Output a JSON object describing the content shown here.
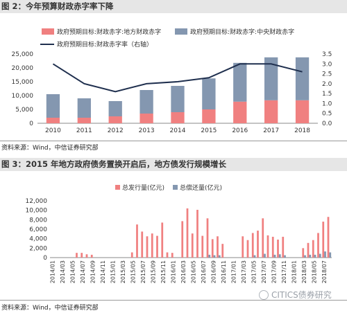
{
  "fig1": {
    "title": "图 2：今年预算财政赤字率下降",
    "source": "资料来源：Wind，中信证券研究部"
  },
  "fig2": {
    "title": "图 3：2015 年地方政府债务置换开启后，地方债发行规模增长",
    "source": "资料来源：Wind，中信证券研究部"
  },
  "watermark": "CITICS债券研究",
  "colors": {
    "local": "#f08080",
    "central": "#8497b0",
    "rate": "#1f2f4e",
    "issue": "#f08080",
    "repay": "#8497b0"
  },
  "chart_data": [
    {
      "type": "bar",
      "stacked": true,
      "categories": [
        "2010",
        "2011",
        "2012",
        "2013",
        "2014",
        "2015",
        "2016",
        "2017",
        "2018"
      ],
      "series": [
        {
          "name": "政府预期目标:财政赤字:地方财政赤字",
          "kind": "bar",
          "axis": "left",
          "values": [
            2000,
            2000,
            2500,
            3500,
            4000,
            5000,
            7800,
            8300,
            8300
          ]
        },
        {
          "name": "政府预期目标:财政赤字:中央财政赤字",
          "kind": "bar",
          "axis": "left",
          "values": [
            8500,
            7000,
            5500,
            8500,
            9500,
            11200,
            14000,
            15500,
            15500
          ]
        },
        {
          "name": "政府预期目标:财政赤字率（右轴）",
          "kind": "line",
          "axis": "right",
          "values": [
            3.0,
            2.0,
            1.6,
            2.0,
            2.1,
            2.3,
            3.0,
            3.0,
            2.6
          ]
        }
      ],
      "yticks_left": [
        "0",
        "5,000",
        "10,000",
        "15,000",
        "20,000",
        "25,000"
      ],
      "yticks_right": [
        "0.0",
        "0.5",
        "1.0",
        "1.5",
        "2.0",
        "2.5",
        "3.0",
        "3.5"
      ],
      "ylim_left": [
        0,
        25000
      ],
      "ylim_right": [
        0,
        3.5
      ],
      "legend_position": "top"
    },
    {
      "type": "bar",
      "categories": [
        "2014/01",
        "2014/02",
        "2014/03",
        "2014/04",
        "2014/05",
        "2014/06",
        "2014/07",
        "2014/08",
        "2014/09",
        "2014/10",
        "2014/11",
        "2014/12",
        "2015/01",
        "2015/02",
        "2015/03",
        "2015/04",
        "2015/05",
        "2015/06",
        "2015/07",
        "2015/08",
        "2015/09",
        "2015/10",
        "2015/11",
        "2015/12",
        "2016/01",
        "2016/02",
        "2016/03",
        "2016/04",
        "2016/05",
        "2016/06",
        "2016/07",
        "2016/08",
        "2016/09",
        "2016/10",
        "2016/11",
        "2016/12",
        "2017/01",
        "2017/02",
        "2017/03",
        "2017/04",
        "2017/05",
        "2017/06",
        "2017/07",
        "2017/08",
        "2017/09",
        "2017/10",
        "2017/11",
        "2017/12",
        "2018/01",
        "2018/02",
        "2018/03",
        "2018/04",
        "2018/05",
        "2018/06",
        "2018/07",
        "2018/08"
      ],
      "tick_labels": [
        "2014/01",
        "2014/03",
        "2014/05",
        "2014/07",
        "2014/09",
        "2014/11",
        "2015/01",
        "2015/03",
        "2015/05",
        "2015/07",
        "2015/09",
        "2015/11",
        "2016/01",
        "2016/03",
        "2016/05",
        "2016/07",
        "2016/09",
        "2016/11",
        "2017/01",
        "2017/03",
        "2017/05",
        "2017/07",
        "2017/09",
        "2017/11",
        "2018/01",
        "2018/03",
        "2018/05",
        "2018/07"
      ],
      "series": [
        {
          "name": "总发行量(亿元)",
          "values": [
            0,
            0,
            0,
            0,
            0,
            1000,
            1000,
            700,
            600,
            0,
            0,
            0,
            0,
            0,
            0,
            0,
            1100,
            7000,
            5500,
            4500,
            5100,
            4600,
            7400,
            1100,
            1000,
            0,
            7700,
            10400,
            5100,
            10100,
            4600,
            8300,
            3900,
            4500,
            2900,
            0,
            0,
            0,
            4500,
            3700,
            5200,
            5700,
            8300,
            4700,
            4400,
            3800,
            4400,
            0,
            0,
            0,
            2000,
            3100,
            3700,
            5200,
            7600,
            8600
          ]
        },
        {
          "name": "总偿还量(亿元)",
          "values": [
            0,
            0,
            0,
            0,
            0,
            0,
            0,
            0,
            0,
            0,
            0,
            0,
            0,
            0,
            0,
            0,
            0,
            0,
            0,
            0,
            0,
            0,
            0,
            0,
            0,
            0,
            0,
            0,
            0,
            0,
            0,
            600,
            500,
            500,
            0,
            0,
            0,
            0,
            0,
            0,
            500,
            0,
            800,
            0,
            600,
            700,
            500,
            0,
            0,
            0,
            500,
            600,
            600,
            800,
            1300,
            1100
          ]
        }
      ],
      "yticks": [
        "0",
        "2,000",
        "4,000",
        "6,000",
        "8,000",
        "10,000",
        "12,000"
      ],
      "ylim": [
        0,
        12000
      ],
      "legend_position": "top"
    }
  ]
}
